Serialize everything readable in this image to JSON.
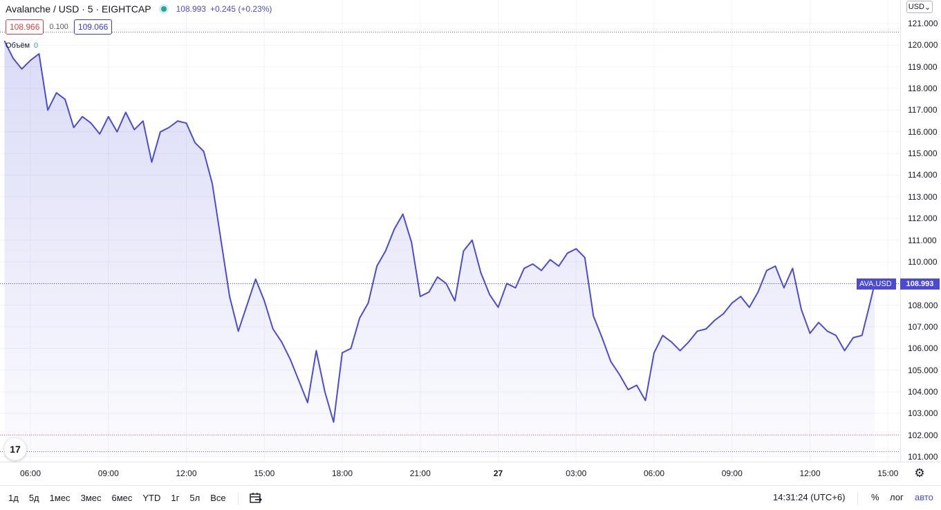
{
  "legend": {
    "symbol": "Avalanche / USD · 5 · EIGHTCAP",
    "price": "108.993",
    "change": "+0.245 (+0.23%)"
  },
  "quote": {
    "bid": "108.966",
    "spread": "0.100",
    "ask": "109.066"
  },
  "volume": {
    "label": "Объём",
    "value": "0"
  },
  "currency": "USD",
  "last_price_tag": {
    "name": "AVA.USD",
    "price": "108.993"
  },
  "colors": {
    "line": "#4a4ad6",
    "bid": "#e03d3d",
    "ask": "#3a3ac4",
    "status": "#26a69a"
  },
  "chart_data": {
    "type": "area",
    "y_axis_ticks": [
      "121.000",
      "120.000",
      "119.000",
      "118.000",
      "117.000",
      "116.000",
      "115.000",
      "114.000",
      "113.000",
      "112.000",
      "111.000",
      "110.000",
      "109.000",
      "108.000",
      "107.000",
      "106.000",
      "105.000",
      "104.000",
      "103.000",
      "102.000",
      "101.000"
    ],
    "x_axis_ticks": [
      "06:00",
      "09:00",
      "12:00",
      "15:00",
      "18:00",
      "21:00",
      "27",
      "03:00",
      "06:00",
      "09:00",
      "12:00",
      "15:00"
    ],
    "ylim": [
      100.9,
      121.5
    ],
    "x": [
      "05:00",
      "05:20",
      "05:40",
      "06:00",
      "06:20",
      "06:40",
      "07:00",
      "07:20",
      "07:40",
      "08:00",
      "08:20",
      "08:40",
      "09:00",
      "09:20",
      "09:40",
      "10:00",
      "10:20",
      "10:40",
      "11:00",
      "11:20",
      "11:40",
      "12:00",
      "12:20",
      "12:40",
      "13:00",
      "13:20",
      "13:40",
      "14:00",
      "14:20",
      "14:40",
      "15:00",
      "15:20",
      "15:40",
      "16:00",
      "16:20",
      "16:40",
      "17:00",
      "17:20",
      "17:40",
      "18:00",
      "18:20",
      "18:40",
      "19:00",
      "19:20",
      "19:40",
      "20:00",
      "20:20",
      "20:40",
      "21:00",
      "21:20",
      "21:40",
      "22:00",
      "22:20",
      "22:40",
      "23:00",
      "23:20",
      "23:40",
      "00:00",
      "00:20",
      "00:40",
      "01:00",
      "01:20",
      "01:40",
      "02:00",
      "02:20",
      "02:40",
      "03:00",
      "03:20",
      "03:40",
      "04:00",
      "04:20",
      "04:40",
      "05:00",
      "05:20",
      "05:40",
      "06:00",
      "06:20",
      "06:40",
      "07:00",
      "07:20",
      "07:40",
      "08:00",
      "08:20",
      "08:40",
      "09:00",
      "09:20",
      "09:40",
      "10:00",
      "10:20",
      "10:40",
      "11:00",
      "11:20",
      "11:40",
      "12:00",
      "12:20",
      "12:40",
      "13:00",
      "13:20",
      "13:40",
      "14:00",
      "14:20",
      "14:30"
    ],
    "values": [
      120.2,
      119.4,
      118.9,
      119.3,
      119.6,
      117.0,
      117.8,
      117.5,
      116.2,
      116.7,
      116.4,
      115.9,
      116.7,
      116.0,
      116.9,
      116.1,
      116.5,
      114.6,
      116.0,
      116.2,
      116.5,
      116.4,
      115.5,
      115.1,
      113.6,
      111.0,
      108.4,
      106.8,
      108.0,
      109.2,
      108.2,
      106.9,
      106.3,
      105.5,
      104.5,
      103.5,
      105.9,
      104.0,
      102.6,
      105.8,
      106.0,
      107.4,
      108.1,
      109.8,
      110.5,
      111.5,
      112.2,
      110.9,
      108.4,
      108.6,
      109.3,
      109.0,
      108.2,
      110.5,
      111.0,
      109.5,
      108.5,
      107.9,
      109.0,
      108.8,
      109.7,
      109.9,
      109.6,
      110.1,
      109.8,
      110.4,
      110.6,
      110.2,
      107.5,
      106.5,
      105.4,
      104.8,
      104.1,
      104.3,
      103.6,
      105.8,
      106.6,
      106.3,
      105.9,
      106.3,
      106.8,
      106.9,
      107.3,
      107.6,
      108.1,
      108.4,
      107.9,
      108.6,
      109.6,
      109.8,
      108.8,
      109.7,
      107.8,
      106.7,
      107.2,
      106.8,
      106.6,
      105.9,
      106.5,
      106.6,
      108.2,
      108.993
    ],
    "last_price": 108.993,
    "bid": 108.966,
    "ask": 109.066
  },
  "toolbar": {
    "ranges": [
      "1д",
      "5д",
      "1мес",
      "3мес",
      "6мес",
      "YTD",
      "1г",
      "5л",
      "Все"
    ],
    "clock": "14:31:24 (UTC+6)",
    "percent": "%",
    "log": "лог",
    "auto": "авто"
  }
}
